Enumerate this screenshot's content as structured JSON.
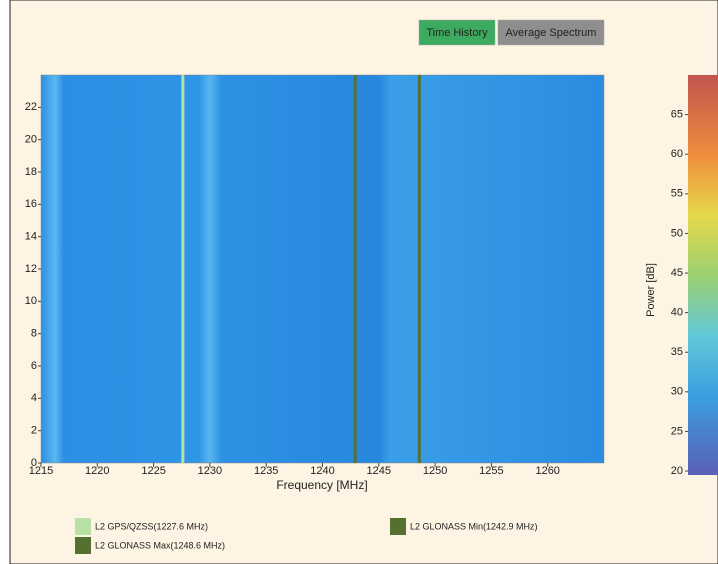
{
  "buttons": [
    {
      "label": "Time History",
      "color": "#3dab5f",
      "text_color": "#ffffff"
    },
    {
      "label": "Average Spectrum",
      "color": "#8e8e8e",
      "text_color": "#1a1a1a"
    }
  ],
  "chart_data": {
    "type": "spectrogram",
    "xlabel": "Frequency [MHz]",
    "xlim": [
      1215,
      1265
    ],
    "xticks": [
      1215,
      1220,
      1225,
      1230,
      1235,
      1240,
      1245,
      1250,
      1255,
      1260
    ],
    "ylim": [
      0,
      24
    ],
    "yticks": [
      0,
      2,
      4,
      6,
      8,
      10,
      12,
      14,
      16,
      18,
      20,
      22
    ],
    "colorbar": {
      "label": "Power [dB]",
      "lim": [
        19.5,
        70
      ],
      "ticks": [
        20,
        25,
        30,
        35,
        40,
        45,
        50,
        55,
        60,
        65
      ]
    },
    "markers": [
      {
        "name": "L2 GPS/QZSS(1227.6 MHz)",
        "freq": 1227.6,
        "color": "#b9e0a5"
      },
      {
        "name": "L2 GLONASS Min(1242.9 MHz)",
        "freq": 1242.9,
        "color": "#56702f"
      },
      {
        "name": "L2 GLONASS Max(1248.6 MHz)",
        "freq": 1248.6,
        "color": "#56702f"
      }
    ]
  }
}
